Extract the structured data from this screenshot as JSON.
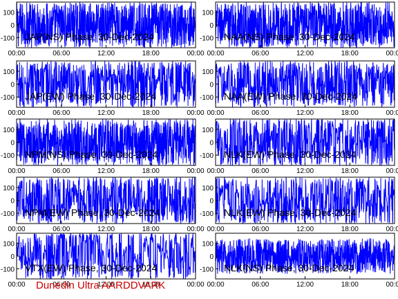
{
  "figure": {
    "footer_text": "Dunedin Ultra AARDDVARK",
    "footer_color": "#cc0000",
    "trace_color": "#0000ff",
    "background": "#ffffff",
    "axis_color": "#000000"
  },
  "chart_data": [
    {
      "type": "line",
      "title": "JAP(NS) Phase, 30-Dec-2024",
      "xlim": [
        0,
        24
      ],
      "ylim": [
        -180,
        180
      ],
      "x_ticks": [
        "00:00",
        "06:00",
        "12:00",
        "18:00",
        "00:00"
      ],
      "y_ticks": [
        "100",
        "0",
        "-100"
      ],
      "grid": false,
      "series": [
        {
          "style": "dense",
          "amplitude": 180,
          "noise": 0.98
        }
      ]
    },
    {
      "type": "line",
      "title": "NAA(NS) Phase, 30-Dec-2024",
      "xlim": [
        0,
        24
      ],
      "ylim": [
        -180,
        180
      ],
      "x_ticks": [
        "00:00",
        "06:00",
        "12:00",
        "18:00",
        "00:00"
      ],
      "y_ticks": [
        "100",
        "0",
        "-100"
      ],
      "grid": false,
      "series": [
        {
          "style": "dense",
          "amplitude": 180,
          "noise": 0.9
        }
      ]
    },
    {
      "type": "line",
      "title": "JAP(EW) Phase, 30-Dec-2024",
      "xlim": [
        0,
        24
      ],
      "ylim": [
        -180,
        180
      ],
      "x_ticks": [
        "00:00",
        "06:00",
        "12:00",
        "18:00",
        "00:00"
      ],
      "y_ticks": [
        "100",
        "0",
        "-100"
      ],
      "grid": false,
      "series": [
        {
          "style": "wandering",
          "amplitude": 180,
          "noise": 0.55
        }
      ]
    },
    {
      "type": "line",
      "title": "NAA(EW) Phase, 30-Dec-2024",
      "xlim": [
        0,
        24
      ],
      "ylim": [
        -180,
        180
      ],
      "x_ticks": [
        "00:00",
        "06:00",
        "12:00",
        "18:00",
        "00:00"
      ],
      "y_ticks": [
        "100",
        "0",
        "-100"
      ],
      "grid": false,
      "series": [
        {
          "style": "wandering",
          "amplitude": 180,
          "noise": 0.6
        }
      ]
    },
    {
      "type": "line",
      "title": "NPM(NS) Phase, 30-Dec-2024",
      "xlim": [
        0,
        24
      ],
      "ylim": [
        -180,
        180
      ],
      "x_ticks": [
        "00:00",
        "06:00",
        "12:00",
        "18:00",
        "00:00"
      ],
      "y_ticks": [
        "100",
        "0",
        "-100"
      ],
      "grid": false,
      "series": [
        {
          "style": "dense",
          "amplitude": 180,
          "noise": 1.0
        }
      ]
    },
    {
      "type": "line",
      "title": "NLK(EW) Phase, 30-Dec-2024",
      "xlim": [
        0,
        24
      ],
      "ylim": [
        -180,
        180
      ],
      "x_ticks": [
        "00:00",
        "06:00",
        "12:00",
        "18:00",
        "00:00"
      ],
      "y_ticks": [
        "100",
        "0",
        "-100"
      ],
      "grid": false,
      "series": [
        {
          "style": "wandering",
          "amplitude": 180,
          "noise": 0.5
        }
      ]
    },
    {
      "type": "line",
      "title": "NPM(EW) Phase, 30-Dec-2024",
      "xlim": [
        0,
        24
      ],
      "ylim": [
        -180,
        180
      ],
      "x_ticks": [
        "00:00",
        "06:00",
        "12:00",
        "18:00",
        "00:00"
      ],
      "y_ticks": [
        "100",
        "0",
        "-100"
      ],
      "grid": false,
      "series": [
        {
          "style": "wandering",
          "amplitude": 180,
          "noise": 0.55
        }
      ]
    },
    {
      "type": "line",
      "title": "NLK(EW) Phase, 30-Dec-2024",
      "xlim": [
        0,
        24
      ],
      "ylim": [
        -180,
        180
      ],
      "x_ticks": [
        "00:00",
        "06:00",
        "12:00",
        "18:00",
        "00:00"
      ],
      "y_ticks": [
        "100",
        "0",
        "-100"
      ],
      "grid": false,
      "series": [
        {
          "style": "wandering",
          "amplitude": 180,
          "noise": 0.5
        }
      ]
    },
    {
      "type": "line",
      "title": "VTX(EW) Phase, 30-Dec-2024",
      "xlim": [
        0,
        24
      ],
      "ylim": [
        -180,
        180
      ],
      "x_ticks": [
        "00:00",
        "06:00",
        "12:00",
        "18:00",
        "00:00"
      ],
      "y_ticks": [
        "100",
        "0",
        "-100"
      ],
      "grid": false,
      "series": [
        {
          "style": "wandering",
          "amplitude": 180,
          "noise": 0.35
        }
      ]
    },
    {
      "type": "line",
      "title": "NLK(NS) Phase, 30-Dec-2024",
      "xlim": [
        0,
        24
      ],
      "ylim": [
        -180,
        180
      ],
      "x_ticks": [
        "00:00",
        "06:00",
        "12:00",
        "18:00",
        "00:00"
      ],
      "y_ticks": [
        "100",
        "0",
        "-100"
      ],
      "grid": false,
      "series": [
        {
          "style": "dense",
          "amplitude": 140,
          "noise": 0.85
        }
      ]
    }
  ]
}
